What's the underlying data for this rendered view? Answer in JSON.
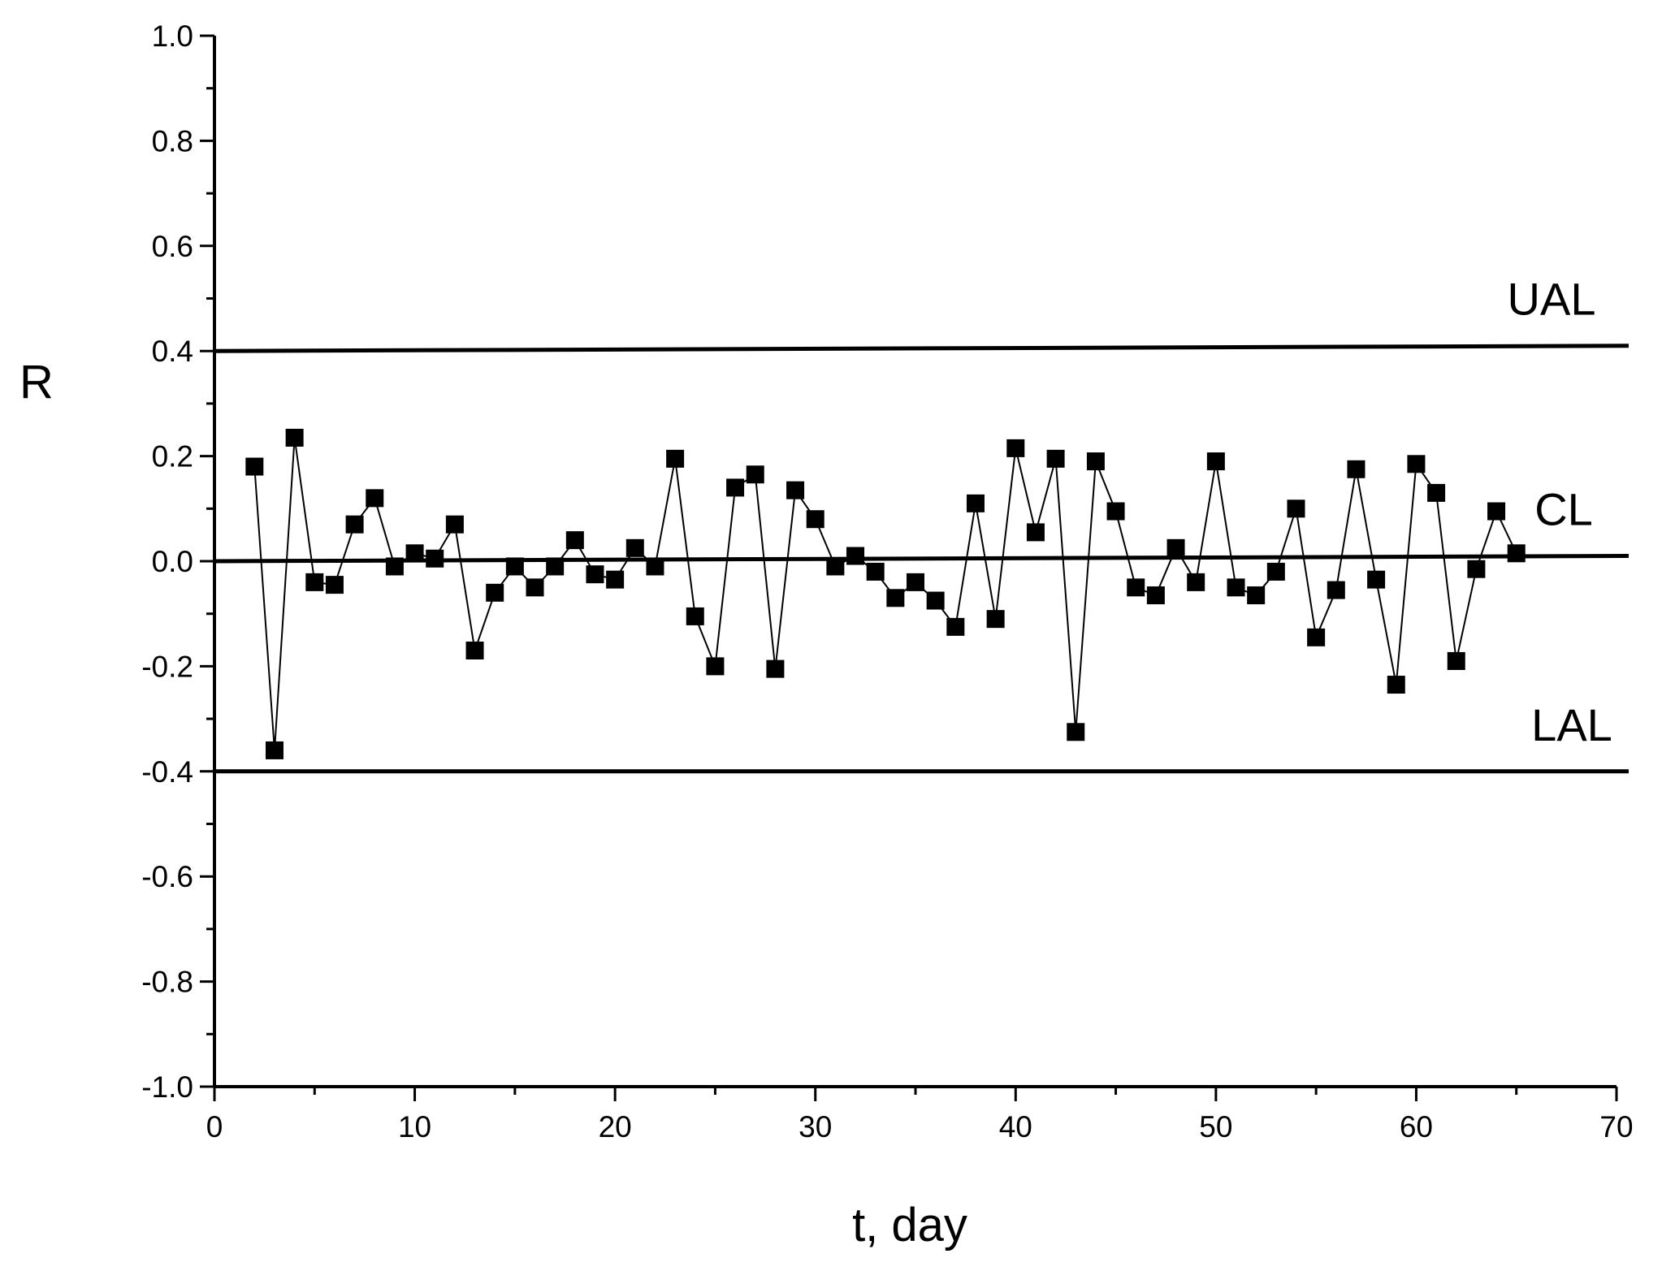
{
  "chart_data": {
    "type": "scatter",
    "xlabel": "t, day",
    "ylabel": "R",
    "xlim": [
      0,
      70
    ],
    "ylim": [
      -1.0,
      1.0
    ],
    "x_ticks": [
      0,
      10,
      20,
      30,
      40,
      50,
      60,
      70
    ],
    "y_ticks": [
      1.0,
      0.8,
      0.6,
      0.4,
      0.2,
      0.0,
      -0.2,
      -0.4,
      -0.6,
      -0.8,
      -1.0
    ],
    "x_tick_labels": [
      "0",
      "10",
      "20",
      "30",
      "40",
      "50",
      "60",
      "70"
    ],
    "y_tick_labels": [
      "1.0",
      "0.8",
      "0.6",
      "0.4",
      "0.2",
      "0.0",
      "-0.2",
      "-0.4",
      "-0.6",
      "-0.8",
      "-1.0"
    ],
    "reference_lines": [
      {
        "label": "UAL",
        "y_start": 0.4,
        "y_end": 0.41
      },
      {
        "label": "CL",
        "y_start": 0.0,
        "y_end": 0.01
      },
      {
        "label": "LAL",
        "y_start": -0.4,
        "y_end": -0.4
      }
    ],
    "series": [
      {
        "marker": "square",
        "line": true,
        "color": "#000000",
        "points": [
          [
            2,
            0.18
          ],
          [
            3,
            -0.36
          ],
          [
            4,
            0.235
          ],
          [
            5,
            -0.04
          ],
          [
            6,
            -0.045
          ],
          [
            7,
            0.07
          ],
          [
            8,
            0.12
          ],
          [
            9,
            -0.01
          ],
          [
            10,
            0.015
          ],
          [
            11,
            0.005
          ],
          [
            12,
            0.07
          ],
          [
            13,
            -0.17
          ],
          [
            14,
            -0.06
          ],
          [
            15,
            -0.01
          ],
          [
            16,
            -0.05
          ],
          [
            17,
            -0.01
          ],
          [
            18,
            0.04
          ],
          [
            19,
            -0.025
          ],
          [
            20,
            -0.035
          ],
          [
            21,
            0.025
          ],
          [
            22,
            -0.01
          ],
          [
            23,
            0.195
          ],
          [
            24,
            -0.105
          ],
          [
            25,
            -0.2
          ],
          [
            26,
            0.14
          ],
          [
            27,
            0.165
          ],
          [
            28,
            -0.205
          ],
          [
            29,
            0.135
          ],
          [
            30,
            0.08
          ],
          [
            31,
            -0.01
          ],
          [
            32,
            0.01
          ],
          [
            33,
            -0.02
          ],
          [
            34,
            -0.07
          ],
          [
            35,
            -0.04
          ],
          [
            36,
            -0.075
          ],
          [
            37,
            -0.125
          ],
          [
            38,
            0.11
          ],
          [
            39,
            -0.11
          ],
          [
            40,
            0.215
          ],
          [
            41,
            0.055
          ],
          [
            42,
            0.195
          ],
          [
            43,
            -0.325
          ],
          [
            44,
            0.19
          ],
          [
            45,
            0.095
          ],
          [
            46,
            -0.05
          ],
          [
            47,
            -0.065
          ],
          [
            48,
            0.025
          ],
          [
            49,
            -0.04
          ],
          [
            50,
            0.19
          ],
          [
            51,
            -0.05
          ],
          [
            52,
            -0.065
          ],
          [
            53,
            -0.02
          ],
          [
            54,
            0.1
          ],
          [
            55,
            -0.145
          ],
          [
            56,
            -0.055
          ],
          [
            57,
            0.175
          ],
          [
            58,
            -0.035
          ],
          [
            59,
            -0.235
          ],
          [
            60,
            0.185
          ],
          [
            61,
            0.13
          ],
          [
            62,
            -0.19
          ],
          [
            63,
            -0.015
          ],
          [
            64,
            0.095
          ],
          [
            65,
            0.015
          ]
        ]
      }
    ]
  }
}
